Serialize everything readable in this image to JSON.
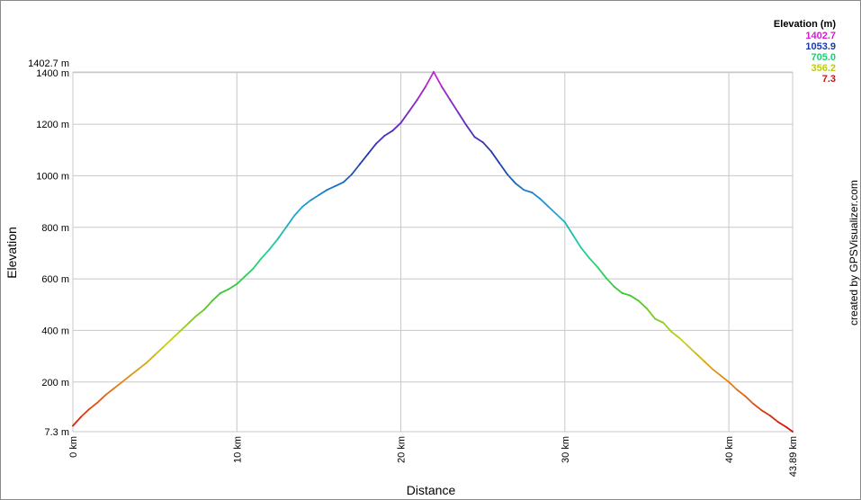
{
  "chart_data": {
    "type": "line",
    "xlabel": "Distance",
    "ylabel": "Elevation",
    "x_unit": "km",
    "y_unit": "m",
    "xlim": [
      0,
      43.89
    ],
    "ylim": [
      7.3,
      1402.7
    ],
    "grid": true,
    "y_ticks": [
      {
        "value": 7.3,
        "label": "7.3 m"
      },
      {
        "value": 200,
        "label": "200 m"
      },
      {
        "value": 400,
        "label": "400 m"
      },
      {
        "value": 600,
        "label": "600 m"
      },
      {
        "value": 800,
        "label": "800 m"
      },
      {
        "value": 1000,
        "label": "1000 m"
      },
      {
        "value": 1200,
        "label": "1200 m"
      },
      {
        "value": 1400,
        "label": "1400 m"
      },
      {
        "value": 1402.7,
        "label": "1402.7 m"
      }
    ],
    "x_ticks": [
      {
        "value": 0,
        "label": "0 km"
      },
      {
        "value": 10,
        "label": "10 km"
      },
      {
        "value": 20,
        "label": "20 km"
      },
      {
        "value": 30,
        "label": "30 km"
      },
      {
        "value": 40,
        "label": "40 km"
      },
      {
        "value": 43.89,
        "label": "43.89 km"
      }
    ],
    "legend": {
      "title": "Elevation (m)",
      "placement": "top-right",
      "entries": [
        {
          "label": "1402.7",
          "color": "#cc22cc"
        },
        {
          "label": "1053.9",
          "color": "#1a3aa8"
        },
        {
          "label": "705.0",
          "color": "#22cc77"
        },
        {
          "label": "356.2",
          "color": "#bbcc11"
        },
        {
          "label": "7.3",
          "color": "#cc1111"
        }
      ]
    },
    "series": [
      {
        "x": [
          0,
          0.5,
          1.0,
          1.5,
          2.0,
          2.5,
          3.0,
          3.5,
          4.0,
          4.5,
          5.0,
          5.5,
          6.0,
          6.5,
          7.0,
          7.5,
          8.0,
          8.5,
          9.0,
          9.5,
          10.0,
          10.5,
          11.0,
          11.5,
          12.0,
          12.5,
          13.0,
          13.5,
          14.0,
          14.5,
          15.0,
          15.5,
          16.0,
          16.5,
          17.0,
          17.5,
          18.0,
          18.5,
          19.0,
          19.5,
          20.0,
          20.5,
          21.0,
          21.5,
          22.0,
          22.5,
          23.0,
          23.5,
          24.0,
          24.5,
          25.0,
          25.5,
          26.0,
          26.5,
          27.0,
          27.5,
          28.0,
          28.5,
          29.0,
          29.5,
          30.0,
          30.5,
          31.0,
          31.5,
          32.0,
          32.5,
          33.0,
          33.5,
          34.0,
          34.5,
          35.0,
          35.5,
          36.0,
          36.5,
          37.0,
          37.5,
          38.0,
          38.5,
          39.0,
          39.5,
          40.0,
          40.5,
          41.0,
          41.5,
          42.0,
          42.5,
          43.0,
          43.5,
          43.89
        ],
        "y": [
          30,
          65,
          95,
          120,
          150,
          175,
          200,
          225,
          250,
          275,
          305,
          335,
          365,
          395,
          425,
          455,
          480,
          515,
          545,
          560,
          580,
          610,
          640,
          680,
          715,
          755,
          800,
          845,
          880,
          905,
          925,
          945,
          960,
          975,
          1005,
          1045,
          1085,
          1125,
          1155,
          1175,
          1205,
          1250,
          1295,
          1345,
          1402.7,
          1345,
          1295,
          1245,
          1195,
          1150,
          1130,
          1095,
          1050,
          1005,
          970,
          945,
          935,
          910,
          880,
          850,
          820,
          770,
          720,
          680,
          645,
          605,
          570,
          545,
          535,
          515,
          485,
          445,
          430,
          395,
          370,
          340,
          310,
          280,
          250,
          225,
          200,
          170,
          145,
          115,
          90,
          70,
          45,
          25,
          7.3
        ]
      }
    ]
  },
  "side_credit": "created by GPSVisualizer.com"
}
